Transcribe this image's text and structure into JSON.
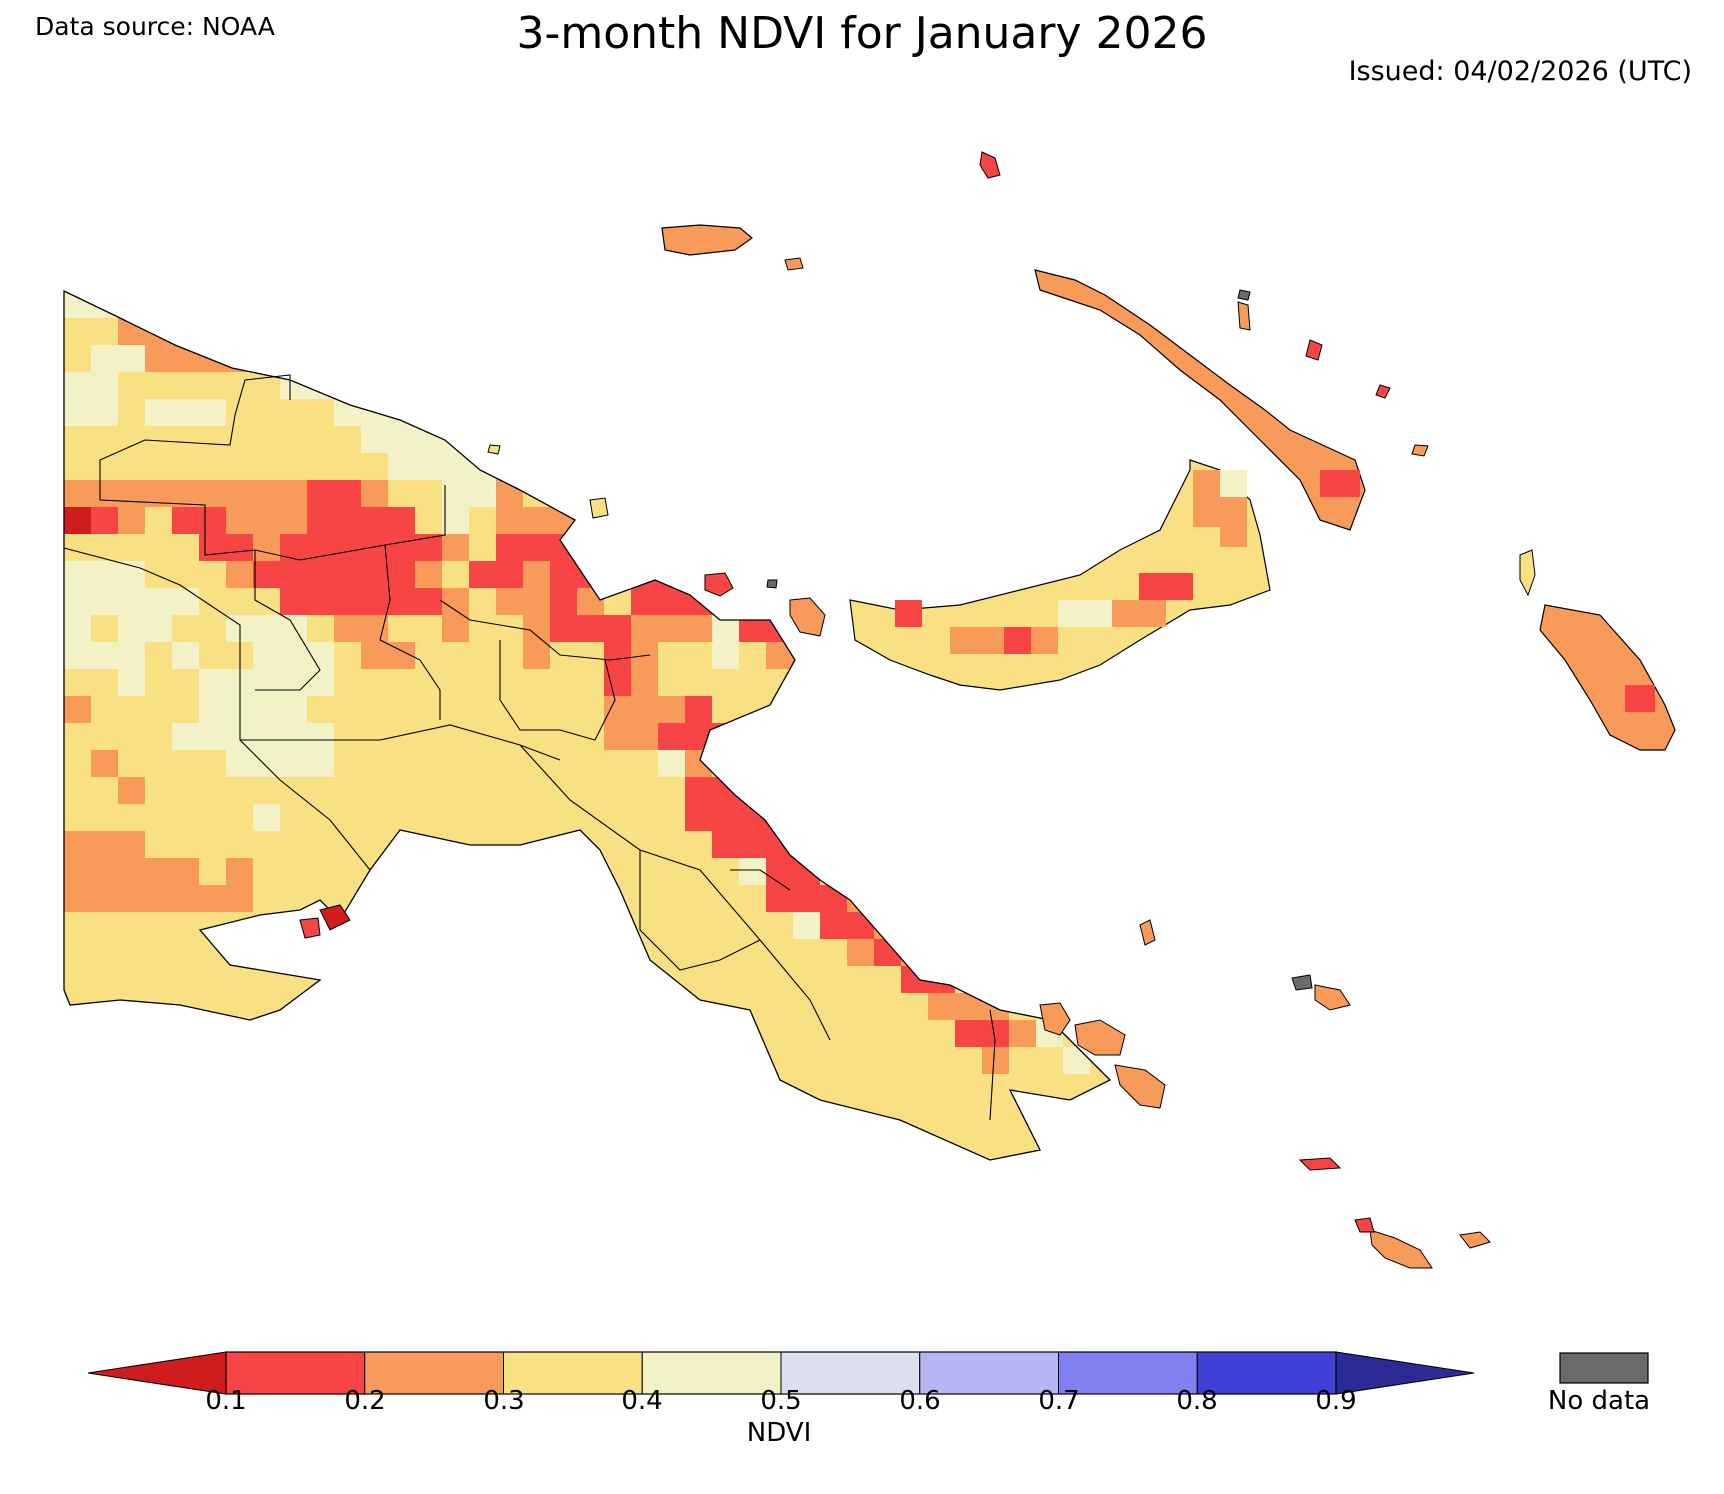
{
  "header": {
    "title": "3-month NDVI for January 2026",
    "source": "Data source: NOAA",
    "issued": "Issued: 04/02/2026 (UTC)"
  },
  "colorbar": {
    "label": "NDVI",
    "ticks": [
      "0.1",
      "0.2",
      "0.3",
      "0.4",
      "0.5",
      "0.6",
      "0.7",
      "0.8",
      "0.9"
    ],
    "under_color": "#d01c1c",
    "over_color": "#2b2b96",
    "bins": [
      {
        "range": "0.1-0.2",
        "color": "#f74545"
      },
      {
        "range": "0.2-0.3",
        "color": "#f89a5a"
      },
      {
        "range": "0.3-0.4",
        "color": "#f9e083"
      },
      {
        "range": "0.4-0.5",
        "color": "#f3f2c6"
      },
      {
        "range": "0.5-0.6",
        "color": "#dcdff0"
      },
      {
        "range": "0.6-0.7",
        "color": "#b6b6f5"
      },
      {
        "range": "0.7-0.8",
        "color": "#8080f0"
      },
      {
        "range": "0.8-0.9",
        "color": "#4040d6"
      }
    ]
  },
  "nodata": {
    "label": "No data",
    "color": "#6b6b6b"
  }
}
